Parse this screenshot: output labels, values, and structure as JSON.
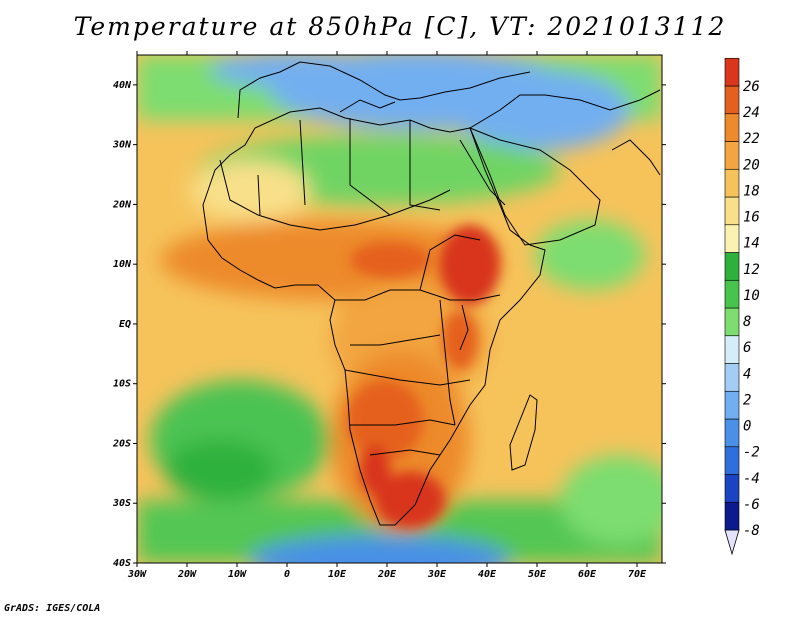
{
  "title": "Temperature at 850hPa [C], VT: 2021013112",
  "credit": "GrADS: IGES/COLA",
  "map": {
    "projection": "lat-lon",
    "lon_range": [
      -30,
      75
    ],
    "lat_range": [
      -40,
      45
    ],
    "lon_ticks": [
      "30W",
      "20W",
      "10W",
      "0",
      "10E",
      "20E",
      "30E",
      "40E",
      "50E",
      "60E",
      "70E"
    ],
    "lat_ticks": [
      "40S",
      "30S",
      "20S",
      "10S",
      "EQ",
      "10N",
      "20N",
      "30N",
      "40N"
    ],
    "ocean_color": "#f6c35b"
  },
  "colorbar": {
    "labels": [
      "-8",
      "-6",
      "-4",
      "-2",
      "0",
      "2",
      "4",
      "6",
      "8",
      "10",
      "12",
      "14",
      "16",
      "18",
      "20",
      "22",
      "24",
      "26"
    ],
    "colors": [
      "#0c1a8c",
      "#1b44c4",
      "#2f6fdd",
      "#4a90e6",
      "#72aff0",
      "#a3cdf5",
      "#d4edf7",
      "#7ddd6f",
      "#48c44c",
      "#2eb13c",
      "#f9f2b0",
      "#f8e08a",
      "#f6c35b",
      "#f2a541",
      "#ed8a2b",
      "#e5601f",
      "#d8361d",
      "#c1151c"
    ]
  }
}
